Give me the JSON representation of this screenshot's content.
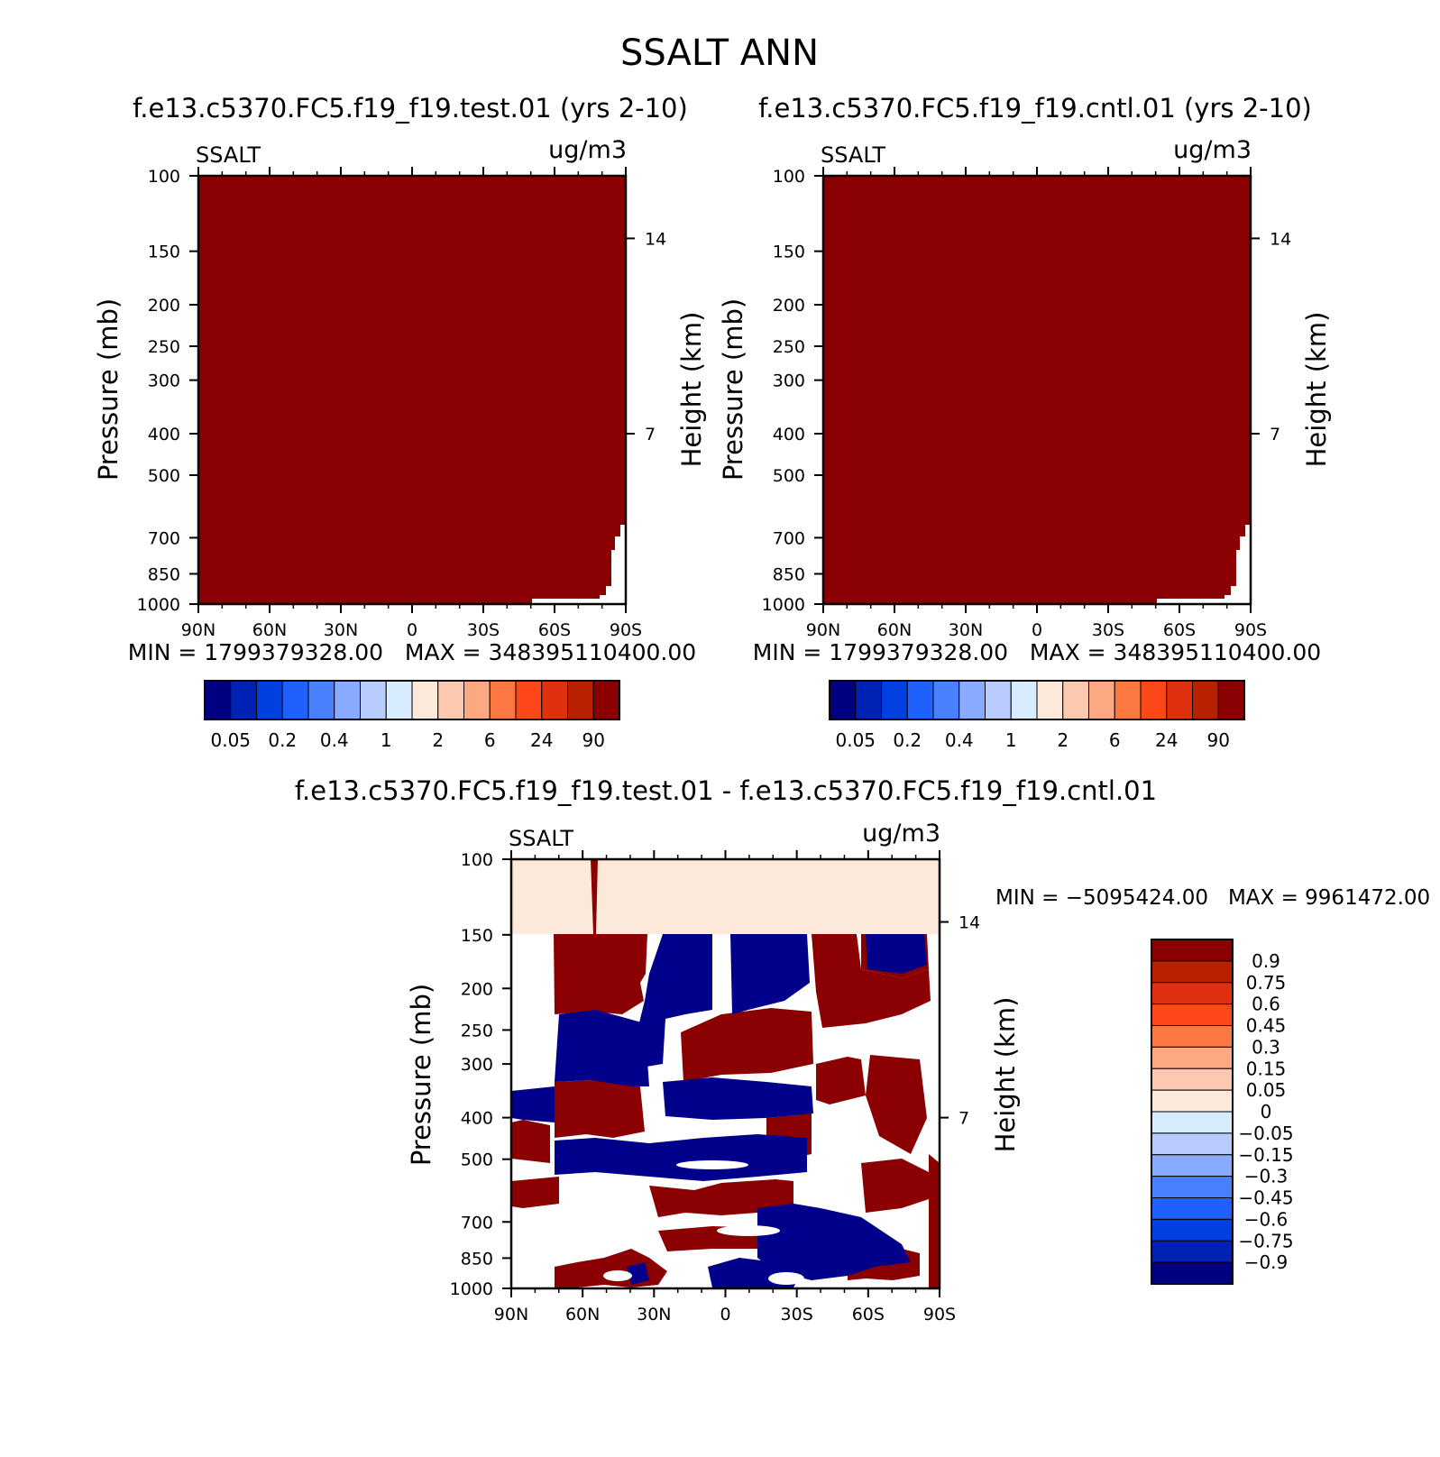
{
  "page_title": "SSALT ANN",
  "colors": {
    "dark_red": "#8b0000",
    "cream": "#fde9d9",
    "navy": "#00008b",
    "abs_scale": [
      "#000080",
      "#0022b4",
      "#0040e0",
      "#2060ff",
      "#4880ff",
      "#88aaff",
      "#b8ccff",
      "#d8ecff",
      "#fde9d9",
      "#fcc8b0",
      "#fca880",
      "#fc7840",
      "#fc4818",
      "#e03010",
      "#b82000",
      "#8b0000"
    ],
    "diff_scale": [
      "#000080",
      "#0022b4",
      "#0040e0",
      "#2060ff",
      "#4880ff",
      "#88aaff",
      "#b8ccff",
      "#d8ecff",
      "#fde9d9",
      "#fcc8b0",
      "#fca880",
      "#fc7840",
      "#fc4818",
      "#e03010",
      "#b82000",
      "#8b0000"
    ]
  },
  "chart_data": [
    {
      "type": "heatmap",
      "title": "f.e13.c5370.FC5.f19_f19.test.01 (yrs 2-10)",
      "left_label": "SSALT",
      "right_label": "ug/m3",
      "ylabel": "Pressure (mb)",
      "ylabel_right": "Height (km)",
      "xticks": [
        "90N",
        "60N",
        "30N",
        "0",
        "30S",
        "60S",
        "90S"
      ],
      "yticks": [
        "100",
        "150",
        "200",
        "250",
        "300",
        "400",
        "500",
        "700",
        "850",
        "1000"
      ],
      "yticks_right": [
        "14",
        "7"
      ],
      "ylim": [
        100,
        1000
      ],
      "y_scale": "log",
      "stats": "MIN = 1799379328.00   MAX = 348395110400.00",
      "colorbar_labels": [
        "0.05",
        "0.2",
        "0.4",
        "1",
        "2",
        "6",
        "24",
        "90"
      ],
      "field": "uniform maximum class (>90) everywhere except a small unfilled region near 60S-90S below ~700 mb"
    },
    {
      "type": "heatmap",
      "title": "f.e13.c5370.FC5.f19_f19.cntl.01 (yrs 2-10)",
      "left_label": "SSALT",
      "right_label": "ug/m3",
      "ylabel": "Pressure (mb)",
      "ylabel_right": "Height (km)",
      "xticks": [
        "90N",
        "60N",
        "30N",
        "0",
        "30S",
        "60S",
        "90S"
      ],
      "yticks": [
        "100",
        "150",
        "200",
        "250",
        "300",
        "400",
        "500",
        "700",
        "850",
        "1000"
      ],
      "yticks_right": [
        "14",
        "7"
      ],
      "ylim": [
        100,
        1000
      ],
      "y_scale": "log",
      "stats": "MIN = 1799379328.00   MAX = 348395110400.00",
      "colorbar_labels": [
        "0.05",
        "0.2",
        "0.4",
        "1",
        "2",
        "6",
        "24",
        "90"
      ],
      "field": "uniform maximum class (>90) everywhere except a small unfilled region near 60S-90S below ~700 mb"
    },
    {
      "type": "heatmap",
      "title": "f.e13.c5370.FC5.f19_f19.test.01 - f.e13.c5370.FC5.f19_f19.cntl.01",
      "left_label": "SSALT",
      "right_label": "ug/m3",
      "ylabel": "Pressure (mb)",
      "ylabel_right": "Height (km)",
      "xticks": [
        "90N",
        "60N",
        "30N",
        "0",
        "30S",
        "60S",
        "90S"
      ],
      "yticks": [
        "100",
        "150",
        "200",
        "250",
        "300",
        "400",
        "500",
        "700",
        "850",
        "1000"
      ],
      "yticks_right": [
        "14",
        "7"
      ],
      "ylim": [
        100,
        1000
      ],
      "y_scale": "log",
      "stats": "MIN = −5095424.00   MAX = 9961472.00",
      "colorbar_labels": [
        "0.9",
        "0.75",
        "0.6",
        "0.45",
        "0.3",
        "0.15",
        "0.05",
        "0",
        "−0.05",
        "−0.15",
        "−0.3",
        "−0.45",
        "−0.6",
        "−0.75",
        "−0.9"
      ],
      "regions": [
        {
          "class": "0 to 0.05",
          "lat_range": [
            "90N",
            "90S"
          ],
          "p_range": [
            100,
            150
          ]
        },
        {
          "class": ">0.9",
          "lat_range": [
            "90N",
            "90S"
          ],
          "p_range": [
            150,
            1000
          ],
          "note": "alternating bands with <-0.9 and unfilled"
        },
        {
          "class": "<-0.9",
          "lat_range": [
            "60N",
            "90S"
          ],
          "p_range": [
            150,
            1000
          ],
          "note": "alternating bands"
        }
      ]
    }
  ]
}
